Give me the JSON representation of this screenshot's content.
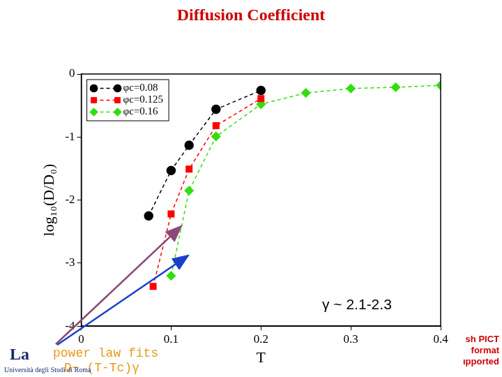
{
  "chart_data": {
    "type": "line",
    "title": "Diffusion Coefficient",
    "x_label": "T",
    "y_label": "log₁₀(D/D₀)",
    "series": [
      {
        "name": "φc=0.08",
        "color": "#000000",
        "marker": "circle",
        "line_style": "dashed",
        "x": [
          0.075,
          0.1,
          0.12,
          0.15,
          0.2
        ],
        "values": [
          -2.25,
          -1.53,
          -1.13,
          -0.56,
          -0.26
        ]
      },
      {
        "name": "φc=0.125",
        "color": "#ff0000",
        "marker": "square",
        "line_style": "dashed",
        "x": [
          0.08,
          0.1,
          0.12,
          0.15,
          0.2
        ],
        "values": [
          -3.37,
          -2.22,
          -1.51,
          -0.82,
          -0.39
        ]
      },
      {
        "name": "φc=0.16",
        "color": "#33dd11",
        "marker": "diamond",
        "line_style": "dashed",
        "x": [
          0.1,
          0.12,
          0.15,
          0.2,
          0.25,
          0.3,
          0.35,
          0.4
        ],
        "values": [
          -3.2,
          -1.85,
          -0.99,
          -0.48,
          -0.3,
          -0.23,
          -0.21,
          -0.18
        ]
      }
    ],
    "xlim": [
      0,
      0.4
    ],
    "xticks": [
      0,
      0.1,
      0.2,
      0.3,
      0.4
    ],
    "ylim": [
      -4,
      0
    ],
    "yticks": [
      -4,
      -3,
      -2,
      -1,
      0
    ],
    "grid": false,
    "legend": "upper left",
    "annotations": [
      "γ ~ 2.1-2.3",
      "power law fits",
      "D~ (T-Tc)γ"
    ],
    "logo": [
      "La",
      "Università degli Studi di Roma"
    ],
    "placeholder": [
      "sh PICT",
      "format",
      "ıpported"
    ]
  }
}
